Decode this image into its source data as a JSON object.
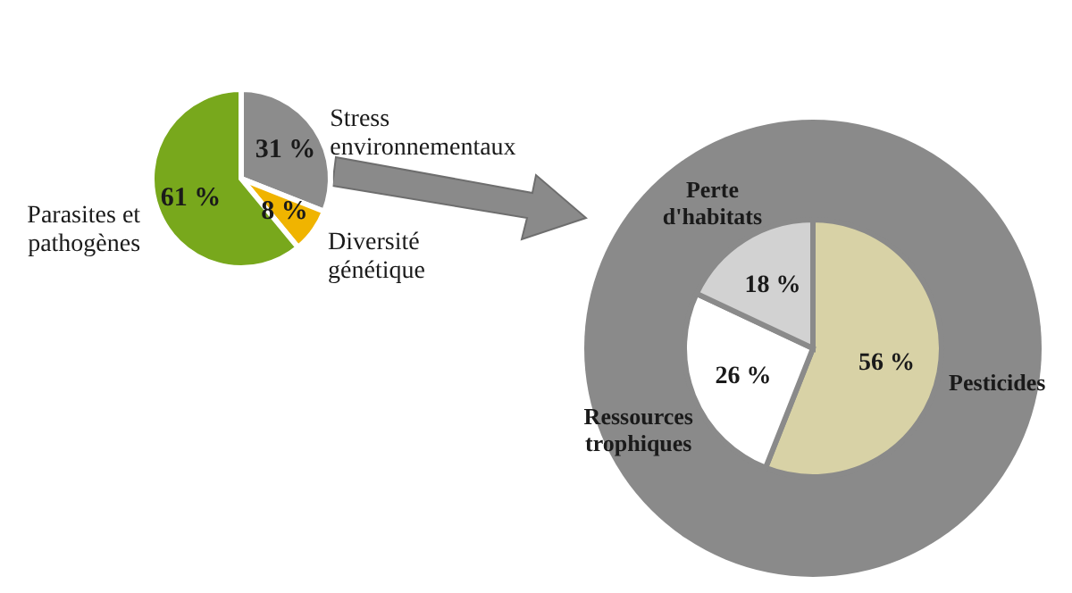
{
  "chart_data": [
    {
      "type": "pie",
      "categories": [
        "Stress\nenvironnementaux",
        "Diversité\ngénétique",
        "Parasites et\npathogènes"
      ],
      "values": [
        31,
        8,
        61
      ],
      "colors": [
        "#8c8c8c",
        "#f0b400",
        "#78a81c"
      ],
      "value_labels": [
        "31 %",
        "8 %",
        "61 %"
      ]
    },
    {
      "type": "pie",
      "categories": [
        "Pesticides",
        "Ressources\ntrophiques",
        "Perte\nd'habitats"
      ],
      "values": [
        56,
        26,
        18
      ],
      "colors": [
        "#d8d2a6",
        "#ffffff",
        "#d2d2d2"
      ],
      "value_labels": [
        "56 %",
        "26 %",
        "18 %"
      ]
    }
  ]
}
